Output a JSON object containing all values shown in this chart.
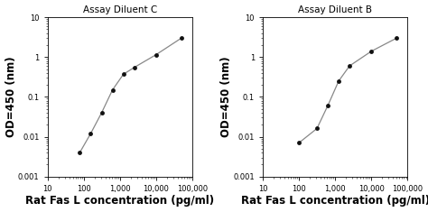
{
  "left": {
    "title": "Assay Diluent C",
    "x": [
      78,
      156,
      313,
      625,
      1250,
      2500,
      10000,
      50000
    ],
    "y": [
      0.004,
      0.012,
      0.04,
      0.15,
      0.37,
      0.55,
      1.15,
      3.0
    ],
    "xlim": [
      10,
      100000
    ],
    "ylim": [
      0.001,
      10
    ],
    "xlabel": "Rat Fas L concentration (pg/ml)",
    "ylabel": "OD=450 (nm)"
  },
  "right": {
    "title": "Assay Diluent B",
    "x": [
      100,
      313,
      625,
      1250,
      2500,
      10000,
      50000
    ],
    "y": [
      0.007,
      0.016,
      0.06,
      0.25,
      0.6,
      1.4,
      3.0
    ],
    "xlim": [
      10,
      100000
    ],
    "ylim": [
      0.001,
      10
    ],
    "xlabel": "Rat Fas L concentration (pg/ml)",
    "ylabel": "OD=450 (nm)"
  },
  "marker": "o",
  "marker_size": 3.5,
  "marker_color": "#111111",
  "line_color": "#888888",
  "line_width": 0.9,
  "bg_color": "#ffffff",
  "title_fontsize": 7.5,
  "axis_label_fontsize": 8.5,
  "tick_fontsize": 6.0
}
